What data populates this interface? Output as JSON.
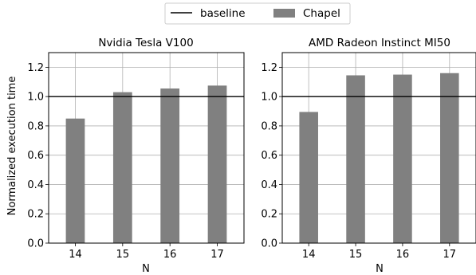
{
  "legend": {
    "items": [
      {
        "label": "baseline",
        "kind": "line",
        "color": "#000000"
      },
      {
        "label": "Chapel",
        "kind": "bar",
        "color": "#808080"
      }
    ]
  },
  "shared": {
    "ylabel": "Normalized execution time"
  },
  "chart_data": [
    {
      "type": "bar",
      "title": "Nvidia Tesla V100",
      "xlabel": "N",
      "ylabel": "Normalized execution time",
      "categories": [
        "14",
        "15",
        "16",
        "17"
      ],
      "series": [
        {
          "name": "Chapel",
          "values": [
            0.85,
            1.03,
            1.055,
            1.075
          ]
        }
      ],
      "baseline": 1.0,
      "ylim": [
        0,
        1.3
      ],
      "yticks": [
        "0.0",
        "0.2",
        "0.4",
        "0.6",
        "0.8",
        "1.0",
        "1.2"
      ],
      "grid": true,
      "legend_position": "top-center",
      "bar_color": "#808080"
    },
    {
      "type": "bar",
      "title": "AMD Radeon Instinct MI50",
      "xlabel": "N",
      "ylabel": "",
      "categories": [
        "14",
        "15",
        "16",
        "17"
      ],
      "series": [
        {
          "name": "Chapel",
          "values": [
            0.895,
            1.145,
            1.15,
            1.16
          ]
        }
      ],
      "baseline": 1.0,
      "ylim": [
        0,
        1.3
      ],
      "yticks": [
        "0.0",
        "0.2",
        "0.4",
        "0.6",
        "0.8",
        "1.0",
        "1.2"
      ],
      "grid": true,
      "legend_position": "top-center",
      "bar_color": "#808080"
    }
  ]
}
